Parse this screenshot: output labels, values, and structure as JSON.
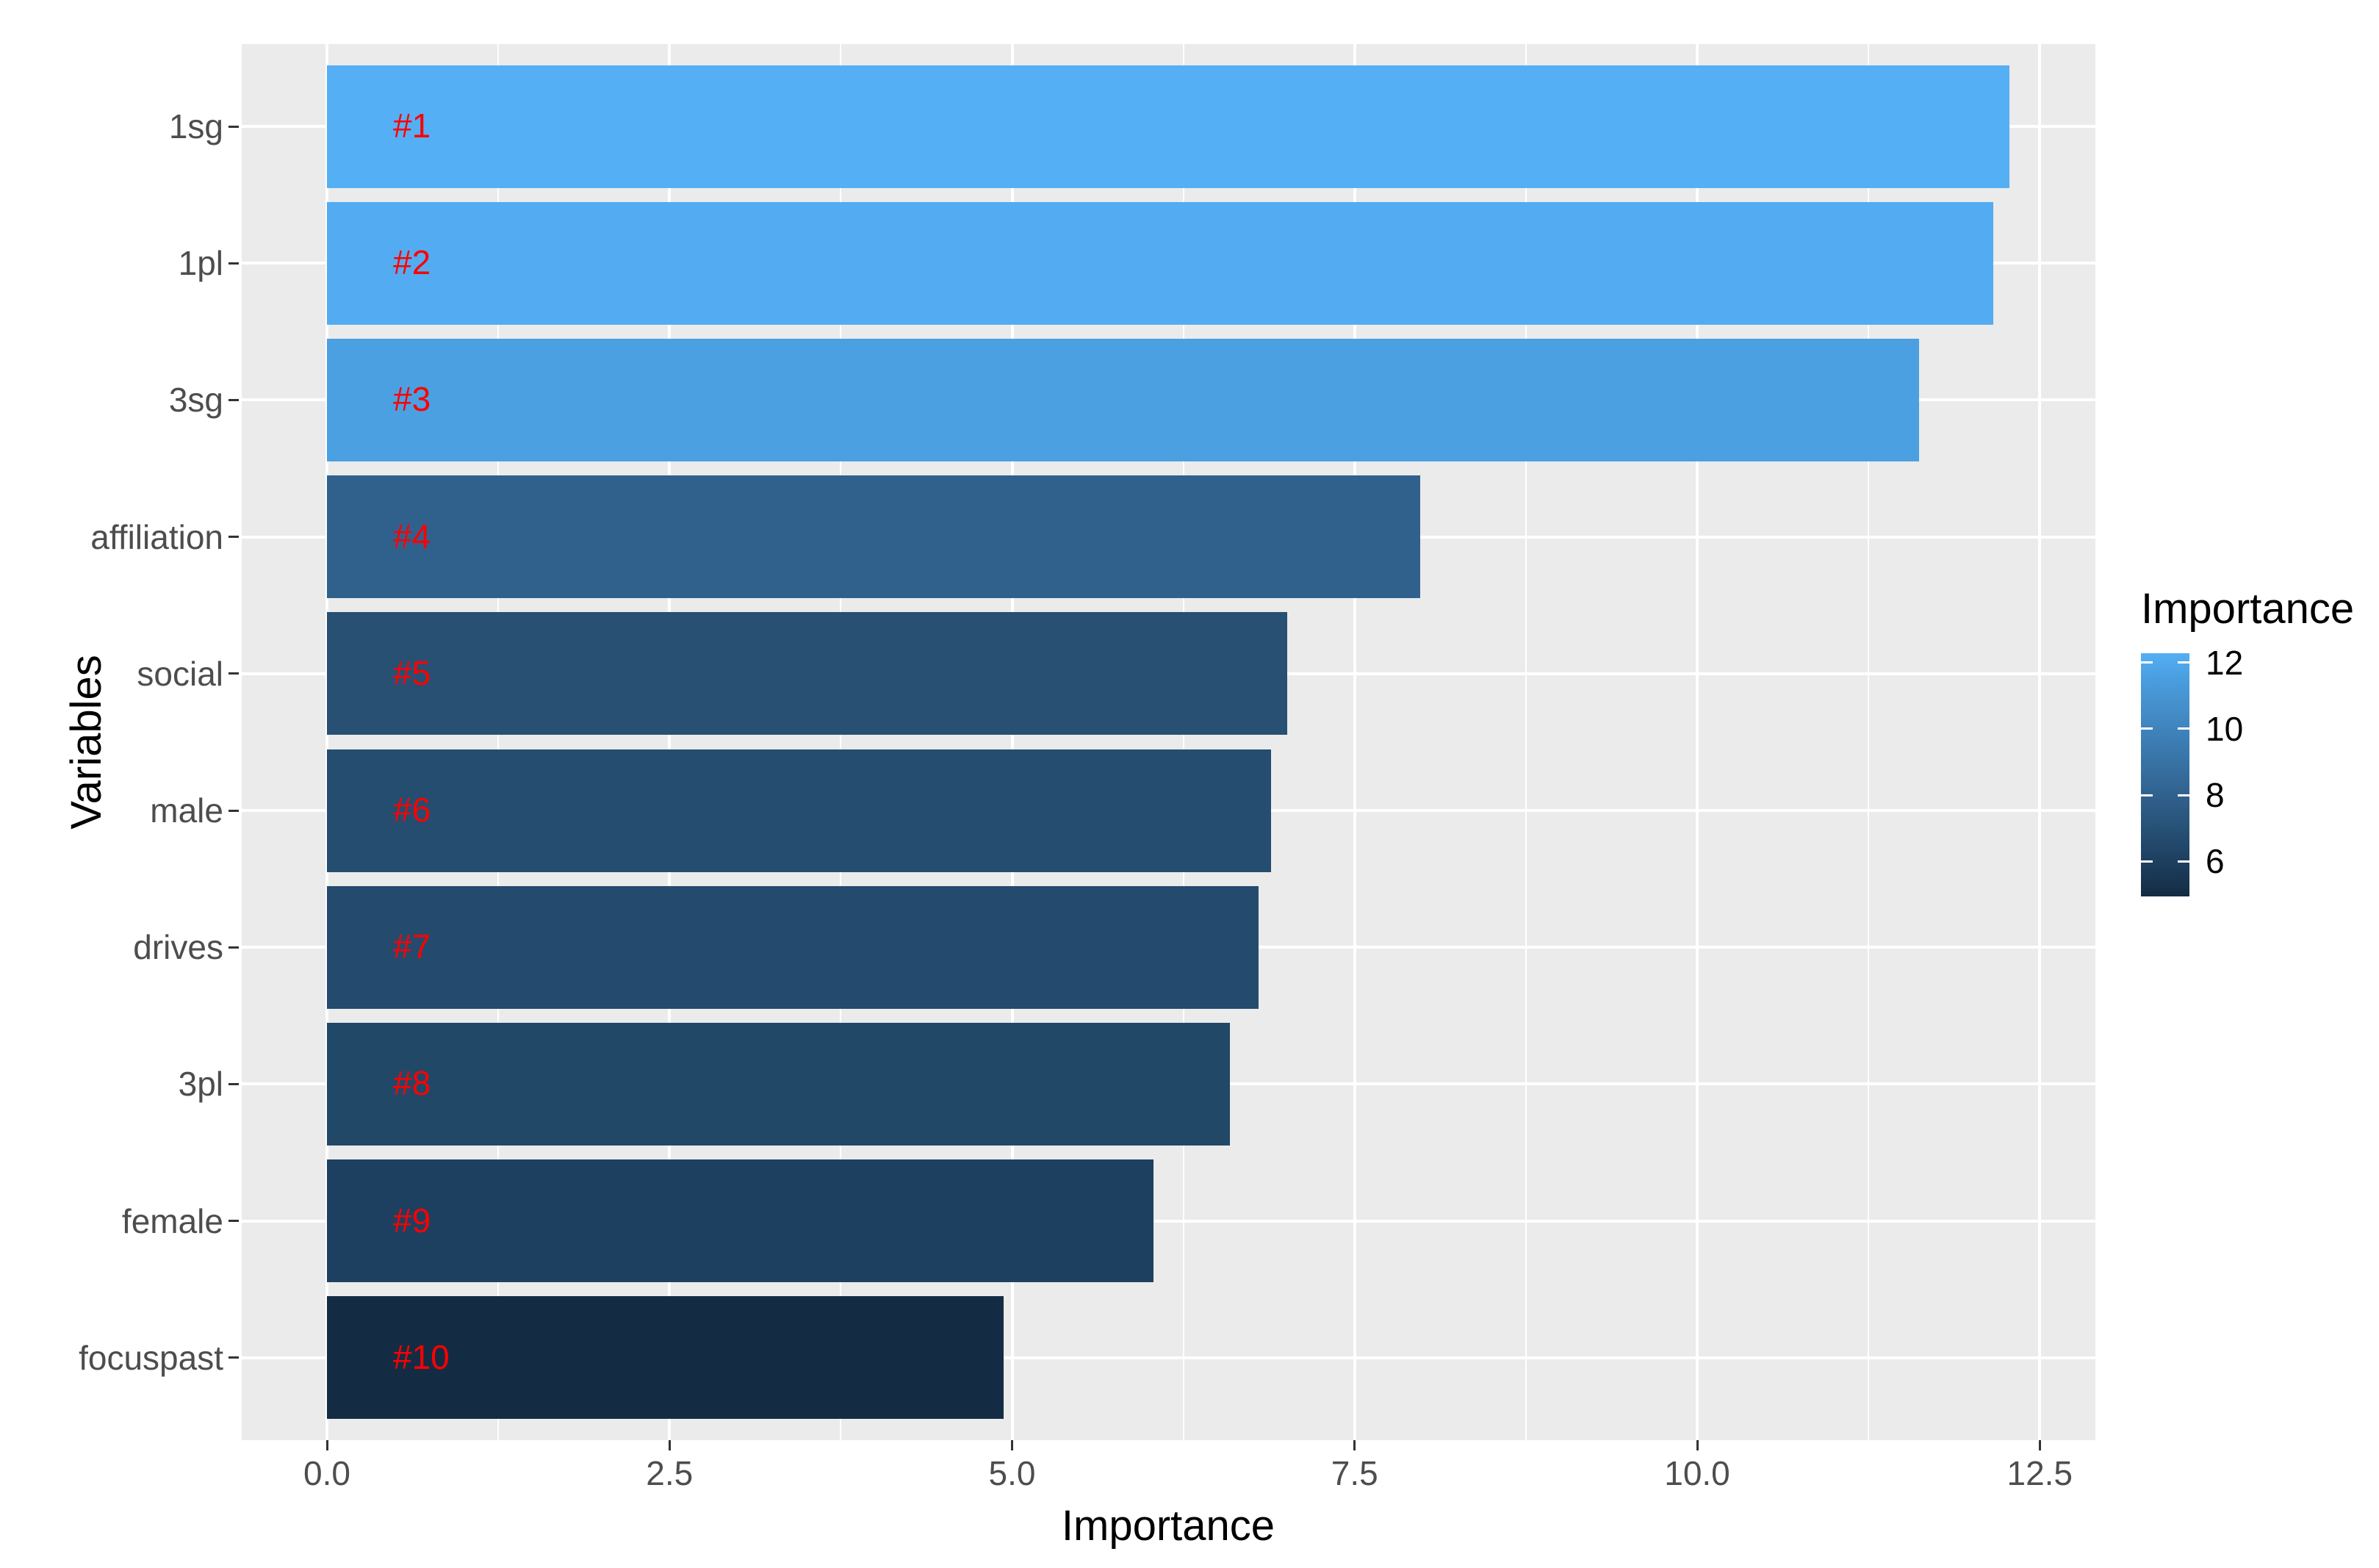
{
  "chart_data": {
    "type": "bar",
    "orientation": "horizontal",
    "title": "",
    "xlabel": "Importance",
    "ylabel": "Variables",
    "categories": [
      "1sg",
      "1pl",
      "3sg",
      "affiliation",
      "social",
      "male",
      "drives",
      "3pl",
      "female",
      "focuspast"
    ],
    "series": [
      {
        "name": "Importance",
        "values": [
          12.28,
          12.16,
          11.62,
          7.98,
          7.01,
          6.89,
          6.8,
          6.59,
          6.03,
          4.94
        ]
      }
    ],
    "bar_rank_labels": [
      "#1",
      "#2",
      "#3",
      "#4",
      "#5",
      "#6",
      "#7",
      "#8",
      "#9",
      "#10"
    ],
    "bar_colors": [
      "#55AFF4",
      "#53ACF1",
      "#4BA0E2",
      "#30618D",
      "#275073",
      "#254D6F",
      "#244B6D",
      "#224868",
      "#1E4060",
      "#142C43"
    ],
    "rank_label_color": "#FF0000",
    "x_ticks": [
      {
        "value": 0,
        "label": "0.0"
      },
      {
        "value": 2.5,
        "label": "2.5"
      },
      {
        "value": 5,
        "label": "5.0"
      },
      {
        "value": 7.5,
        "label": "7.5"
      },
      {
        "value": 10,
        "label": "10.0"
      },
      {
        "value": 12.5,
        "label": "12.5"
      }
    ],
    "x_minor_ticks": [
      1.25,
      3.75,
      6.25,
      8.75,
      11.25
    ],
    "xlim": [
      -0.62,
      12.91
    ],
    "grid": true,
    "panel_background": "#EBEBEB",
    "gridline_color": "#FFFFFF",
    "axis_text_color": "#4D4D4D",
    "axis_title_color": "#000000",
    "legend": {
      "position": "right",
      "title": "Importance",
      "range": [
        4.94,
        12.28
      ],
      "ticks": [
        {
          "value": 12,
          "label": "12"
        },
        {
          "value": 10,
          "label": "10"
        },
        {
          "value": 8,
          "label": "8"
        },
        {
          "value": 6,
          "label": "6"
        }
      ],
      "gradient_colors": [
        "#142C43",
        "#1E4060",
        "#30618D",
        "#356C9C",
        "#4085BE",
        "#4BA0E2",
        "#55AFF4"
      ],
      "gradient_positions": [
        0,
        0.148,
        0.414,
        0.5,
        0.7,
        0.91,
        1
      ]
    }
  }
}
